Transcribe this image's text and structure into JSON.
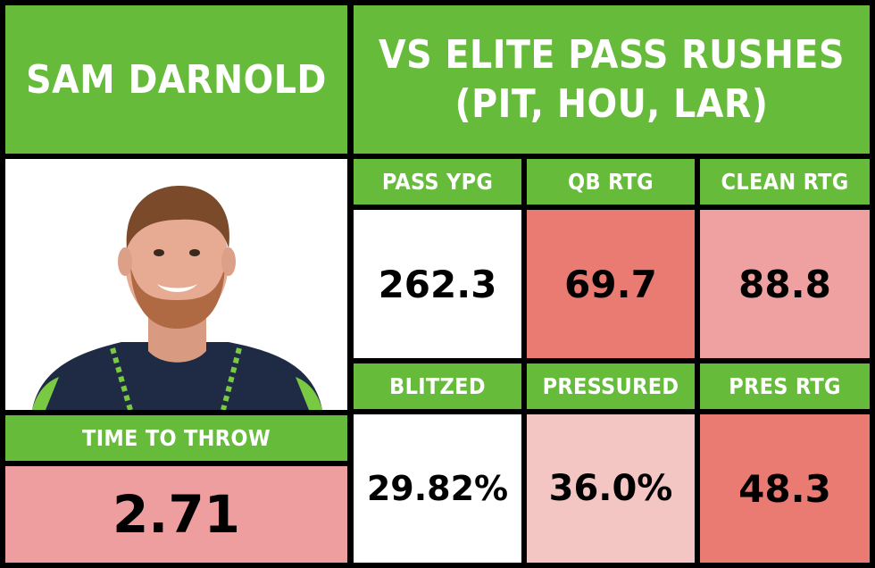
{
  "player": {
    "name": "SAM DARNOLD",
    "photo_icon": "player-headshot"
  },
  "context": {
    "line1": "VS ELITE PASS RUSHES",
    "line2": "(PIT, HOU, LAR)"
  },
  "time_to_throw": {
    "label": "TIME TO THROW",
    "value": "2.71",
    "color": "#ee9e9e"
  },
  "stats": [
    {
      "label": "PASS YPG",
      "value": "262.3",
      "color": "#ffffff"
    },
    {
      "label": "QB RTG",
      "value": "69.7",
      "color": "#e97b73"
    },
    {
      "label": "CLEAN RTG",
      "value": "88.8",
      "color": "#eea1a0"
    },
    {
      "label": "BLITZED",
      "value": "29.82%",
      "color": "#ffffff"
    },
    {
      "label": "PRESSURED",
      "value": "36.0%",
      "color": "#f3c5c3"
    },
    {
      "label": "PRES RTG",
      "value": "48.3",
      "color": "#e97b73"
    }
  ],
  "colors": {
    "header_green": "#66bb3a",
    "background": "#000000"
  }
}
